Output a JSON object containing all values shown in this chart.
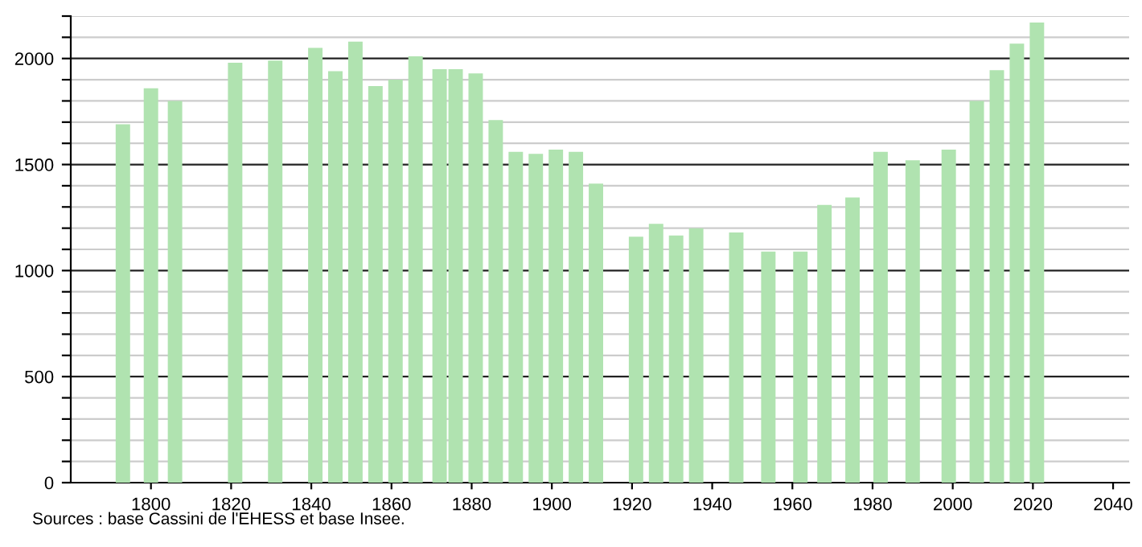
{
  "chart_data": {
    "type": "bar",
    "x": [
      1793,
      1800,
      1806,
      1821,
      1831,
      1841,
      1846,
      1851,
      1856,
      1861,
      1866,
      1872,
      1876,
      1881,
      1886,
      1891,
      1896,
      1901,
      1906,
      1911,
      1921,
      1926,
      1931,
      1936,
      1946,
      1954,
      1962,
      1968,
      1975,
      1982,
      1990,
      1999,
      2006,
      2011,
      2016,
      2021
    ],
    "values": [
      1690,
      1860,
      1800,
      1980,
      1990,
      2050,
      1940,
      2080,
      1870,
      1900,
      2010,
      1950,
      1950,
      1930,
      1710,
      1560,
      1550,
      1570,
      1560,
      1410,
      1160,
      1220,
      1165,
      1200,
      1180,
      1090,
      1090,
      1310,
      1345,
      1560,
      1520,
      1570,
      1800,
      1945,
      2070,
      2170
    ],
    "color": "#b0e3b0",
    "xlim": [
      1780,
      2044
    ],
    "xticks": [
      1800,
      1820,
      1840,
      1860,
      1880,
      1900,
      1920,
      1940,
      1960,
      1980,
      2000,
      2020,
      2040
    ],
    "ylim": [
      0,
      2200
    ],
    "yticks": [
      0,
      {
        "value": 100,
        "label": null
      },
      {
        "value": 200,
        "label": null
      },
      {
        "value": 300,
        "label": null
      },
      {
        "value": 400,
        "label": null
      },
      500,
      {
        "value": 600,
        "label": null
      },
      {
        "value": 700,
        "label": null
      },
      {
        "value": 800,
        "label": null
      },
      {
        "value": 900,
        "label": null
      },
      1000,
      {
        "value": 1100,
        "label": null
      },
      {
        "value": 1200,
        "label": null
      },
      {
        "value": 1300,
        "label": null
      },
      {
        "value": 1400,
        "label": null
      },
      1500,
      {
        "value": 1600,
        "label": null
      },
      {
        "value": 1700,
        "label": null
      },
      {
        "value": 1800,
        "label": null
      },
      {
        "value": 1900,
        "label": null
      },
      2000,
      {
        "value": 2100,
        "label": null
      },
      {
        "value": 2200,
        "label": null
      }
    ],
    "grid": "y",
    "annotations": [
      "Sources : base Cassini de l'EHESS et base Insee."
    ]
  }
}
